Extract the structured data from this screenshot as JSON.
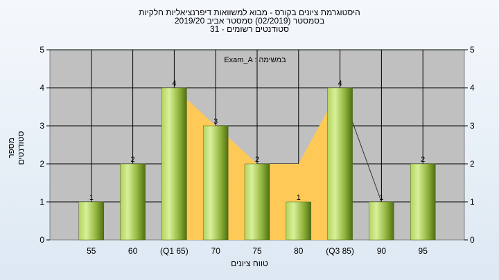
{
  "header": {
    "line1": "היסטוגרמת ציונים בקורס - מבוא למשוואות דיפרנציאליות חלקיות",
    "line2": "בסמסטר  (02/2019)  סמסטר אביב 2019/20",
    "line3": "סטודנטים רשומים - 31"
  },
  "colors": {
    "bar_light": "#cfe88a",
    "bar_dark": "#5e7f1e",
    "area": "#ffc957",
    "plot_bg": "#c0c0c0"
  },
  "chart_data": {
    "type": "bar",
    "title": "היסטוגרמת ציונים בקורס - מבוא למשוואות דיפרנציאליות חלקיות",
    "categories": [
      "55",
      "60",
      "(Q1 65)",
      "70",
      "75",
      "80",
      "(Q3 85)",
      "90",
      "95"
    ],
    "values": [
      1,
      2,
      4,
      3,
      2,
      1,
      4,
      1,
      2
    ],
    "overlay_area": [
      null,
      null,
      4,
      3,
      2,
      2,
      4,
      null,
      null
    ],
    "overlay_line": [
      null,
      null,
      null,
      null,
      null,
      null,
      4,
      1,
      null
    ],
    "xlabel": "טווח ציונים",
    "ylabel": "מספר סטודנטים",
    "ylim": [
      0,
      5
    ],
    "yticks": [
      0,
      1,
      2,
      3,
      4,
      5
    ],
    "annotation": "Exam_A : במשימה",
    "grid": true,
    "legend": "none"
  }
}
